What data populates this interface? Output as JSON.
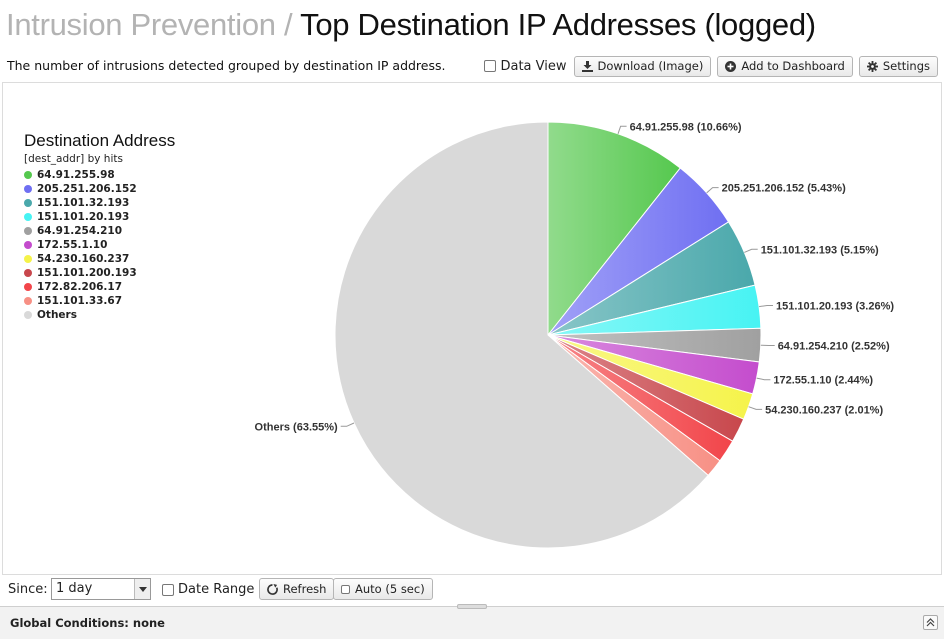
{
  "header": {
    "breadcrumb_parent": "Intrusion Prevention",
    "separator": "/",
    "title": "Top Destination IP Addresses (logged)"
  },
  "description": "The number of intrusions detected grouped by destination IP address.",
  "toolbar": {
    "data_view_label": "Data View",
    "download_label": "Download (Image)",
    "add_dashboard_label": "Add to Dashboard",
    "settings_label": "Settings"
  },
  "chart_data": {
    "type": "pie",
    "title": "Destination Address",
    "subtitle": "[dest_addr] by hits",
    "legend_position": "left",
    "slices": [
      {
        "name": "64.91.255.98",
        "value": 10.66,
        "label": "64.91.255.98 (10.66%)",
        "color": "#55c84e"
      },
      {
        "name": "205.251.206.152",
        "value": 5.43,
        "label": "205.251.206.152 (5.43%)",
        "color": "#6f6ff2"
      },
      {
        "name": "151.101.32.193",
        "value": 5.15,
        "label": "151.101.32.193 (5.15%)",
        "color": "#4aa8ab"
      },
      {
        "name": "151.101.20.193",
        "value": 3.26,
        "label": "151.101.20.193 (3.26%)",
        "color": "#47f3f3"
      },
      {
        "name": "64.91.254.210",
        "value": 2.52,
        "label": "64.91.254.210 (2.52%)",
        "color": "#a0a0a0"
      },
      {
        "name": "172.55.1.10",
        "value": 2.44,
        "label": "172.55.1.10 (2.44%)",
        "color": "#c44ccd"
      },
      {
        "name": "54.230.160.237",
        "value": 2.01,
        "label": "54.230.160.237 (2.01%)",
        "color": "#f5f34a"
      },
      {
        "name": "151.101.200.193",
        "value": 1.84,
        "label": "",
        "color": "#c8474c"
      },
      {
        "name": "172.82.206.17",
        "value": 1.74,
        "label": "",
        "color": "#f2454a"
      },
      {
        "name": "151.101.33.67",
        "value": 1.4,
        "label": "",
        "color": "#f79085"
      },
      {
        "name": "Others",
        "value": 63.55,
        "label": "Others (63.55%)",
        "color": "#d9d9d9"
      }
    ]
  },
  "controls": {
    "since_label": "Since:",
    "since_value": "1 day",
    "date_range_label": "Date Range",
    "refresh_label": "Refresh",
    "auto_label": "Auto (5 sec)"
  },
  "global": {
    "label": "Global Conditions: none"
  }
}
